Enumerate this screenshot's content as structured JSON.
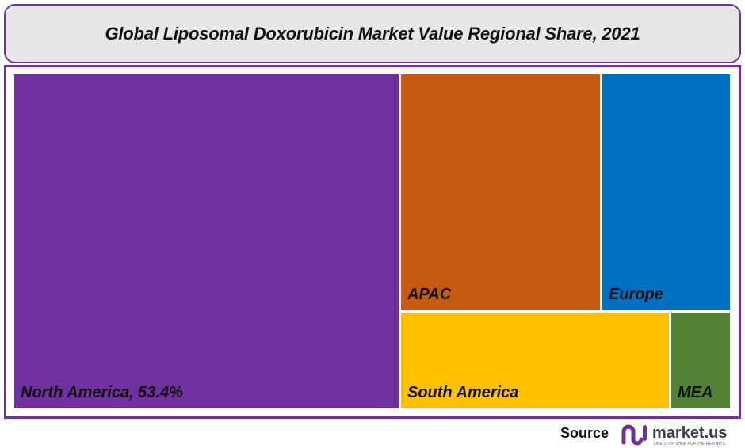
{
  "chart_data": {
    "type": "treemap",
    "title": "Global Liposomal Doxorubicin  Market Value Regional Share, 2021",
    "unit": "%",
    "items": [
      {
        "name": "North America",
        "value": 53.4,
        "label": "North America, 53.4%",
        "color": "#7030a0"
      },
      {
        "name": "APAC",
        "value": 19.8,
        "label": "APAC",
        "color": "#c55a11"
      },
      {
        "name": "Europe",
        "value": 12.8,
        "label": "Europe",
        "color": "#0070c0"
      },
      {
        "name": "South America",
        "value": 11.0,
        "label": "South America",
        "color": "#ffc000"
      },
      {
        "name": "MEA",
        "value": 2.5,
        "label": "MEA",
        "color": "#548235"
      }
    ]
  },
  "footer": {
    "source_label": "Source",
    "logo_text": "market.us",
    "logo_tagline": "ONE STOP SHOP FOR THE REPORTS"
  },
  "colors": {
    "frame": "#7030a0",
    "title_bg": "#e7e7e7"
  }
}
